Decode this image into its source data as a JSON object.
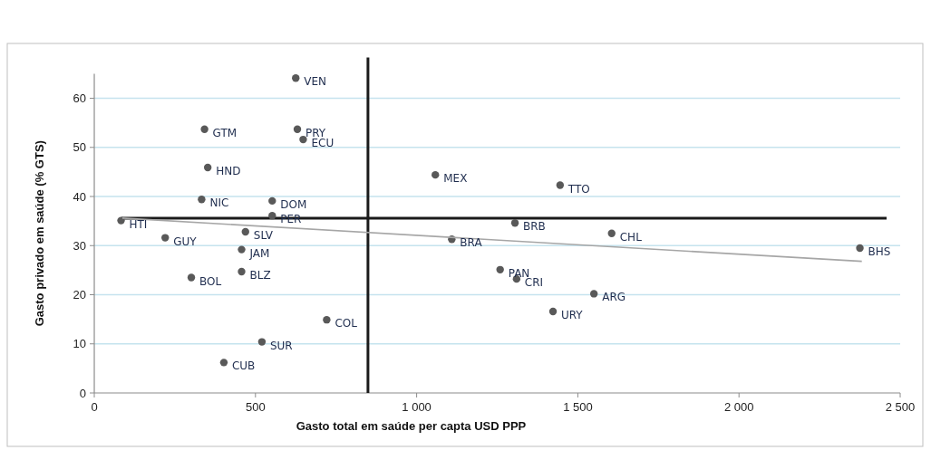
{
  "chart_data": {
    "type": "scatter",
    "xlabel": "Gasto total em saúde per capta USD PPP",
    "ylabel": "Gasto privado em saúde (% GTS)",
    "xlim": [
      0,
      2500
    ],
    "ylim": [
      0,
      65
    ],
    "xticks": [
      0,
      500,
      {
        "value": 1000,
        "label": "1 000"
      },
      {
        "value": 1500,
        "label": "1 500"
      },
      {
        "value": 2000,
        "label": "2 000"
      },
      {
        "value": 2500,
        "label": "2 500"
      }
    ],
    "yticks": [
      0,
      10,
      20,
      30,
      40,
      50,
      60
    ],
    "grid": "y",
    "marker": "circle",
    "series": [
      {
        "color": "#595959",
        "x": [
          625,
          342,
          630,
          648,
          352,
          333,
          552,
          552,
          83,
          469,
          220,
          457,
          457,
          301,
          721,
          520,
          402,
          1058,
          1445,
          1305,
          1109,
          1605,
          2375,
          1259,
          1310,
          1550,
          1423
        ],
        "values": [
          64.1,
          53.7,
          53.7,
          51.6,
          45.9,
          39.4,
          39.1,
          36.1,
          35.1,
          32.8,
          31.6,
          29.2,
          24.7,
          23.5,
          14.9,
          10.4,
          6.2,
          44.4,
          42.3,
          34.6,
          31.3,
          32.5,
          29.5,
          25.1,
          23.2,
          20.2,
          16.6
        ]
      },
      {
        "type": "line",
        "color": "#a6a6a6",
        "x": [
          87,
          2381
        ],
        "values": [
          35.6,
          26.8
        ],
        "marker": "none"
      }
    ],
    "ref_lines": [
      {
        "axis": "y",
        "value": 35.6,
        "color": "#1a1a1a"
      },
      {
        "axis": "x",
        "value": 849,
        "color": "#1a1a1a"
      }
    ],
    "annotations": [
      {
        "text": "VEN",
        "x": 625,
        "y": 64.1
      },
      {
        "text": "GTM",
        "x": 342,
        "y": 53.7
      },
      {
        "text": "PRY",
        "x": 630,
        "y": 53.7
      },
      {
        "text": "ECU",
        "x": 648,
        "y": 51.6
      },
      {
        "text": "HND",
        "x": 352,
        "y": 45.9
      },
      {
        "text": "NIC",
        "x": 333,
        "y": 39.4
      },
      {
        "text": "DOM",
        "x": 552,
        "y": 39.1
      },
      {
        "text": "PER",
        "x": 552,
        "y": 36.1
      },
      {
        "text": "HTI",
        "x": 83,
        "y": 35.1
      },
      {
        "text": "SLV",
        "x": 469,
        "y": 32.8
      },
      {
        "text": "GUY",
        "x": 220,
        "y": 31.6
      },
      {
        "text": "JAM",
        "x": 457,
        "y": 29.2
      },
      {
        "text": "BLZ",
        "x": 457,
        "y": 24.7
      },
      {
        "text": "BOL",
        "x": 301,
        "y": 23.5
      },
      {
        "text": "COL",
        "x": 721,
        "y": 14.9
      },
      {
        "text": "SUR",
        "x": 520,
        "y": 10.4
      },
      {
        "text": "CUB",
        "x": 402,
        "y": 6.2
      },
      {
        "text": "MEX",
        "x": 1058,
        "y": 44.4
      },
      {
        "text": "TTO",
        "x": 1445,
        "y": 42.3
      },
      {
        "text": "BRB",
        "x": 1305,
        "y": 34.6
      },
      {
        "text": "BRA",
        "x": 1109,
        "y": 31.3
      },
      {
        "text": "CHL",
        "x": 1605,
        "y": 32.5
      },
      {
        "text": "BHS",
        "x": 2375,
        "y": 29.5
      },
      {
        "text": "PAN",
        "x": 1259,
        "y": 25.1
      },
      {
        "text": "CRI",
        "x": 1310,
        "y": 23.2
      },
      {
        "text": "ARG",
        "x": 1550,
        "y": 20.2
      },
      {
        "text": "URY",
        "x": 1423,
        "y": 16.6
      }
    ]
  }
}
